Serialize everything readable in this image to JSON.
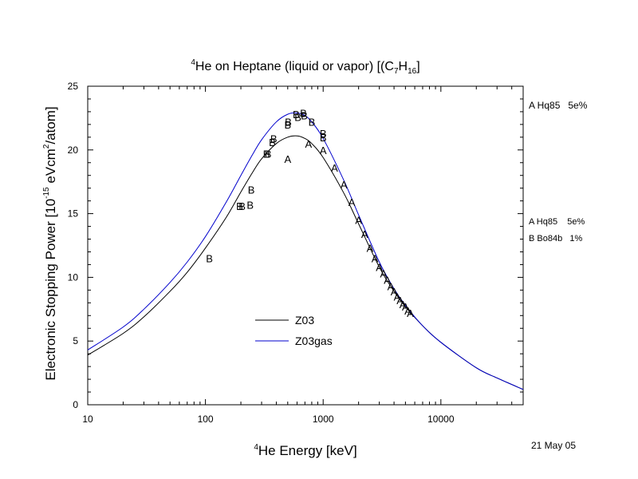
{
  "chart_data": {
    "type": "line",
    "title": {
      "pre": "4",
      "main": "He on Heptane (liquid or vapor) [(C",
      "sub1": "7",
      "mid": "H",
      "sub2": "16",
      "post": "]"
    },
    "xlabel": {
      "pre": "4",
      "main": "He Energy [keV]"
    },
    "ylabel": {
      "a": "Electronic Stopping Power [10",
      "exp1": "-15",
      "b": " eVcm",
      "exp2": "2",
      "c": "/atom]"
    },
    "x_scale": "log",
    "xlim": [
      10,
      50000
    ],
    "ylim": [
      0,
      25
    ],
    "x_ticks": [
      10,
      100,
      1000,
      10000
    ],
    "x_tick_labels": [
      "10",
      "100",
      "1000",
      "10000"
    ],
    "y_ticks": [
      0,
      5,
      10,
      15,
      20,
      25
    ],
    "y_tick_labels": [
      "0",
      "5",
      "10",
      "15",
      "20",
      "25"
    ],
    "series": [
      {
        "name": "Z03",
        "color": "#000000",
        "x": [
          10,
          20,
          30,
          50,
          70,
          100,
          150,
          200,
          250,
          300,
          400,
          500,
          600,
          700,
          800,
          1000,
          1500,
          2000,
          3000,
          4000,
          5000,
          7000,
          10000,
          20000,
          30000,
          50000
        ],
        "y": [
          3.9,
          5.6,
          6.9,
          8.9,
          10.4,
          12.3,
          14.7,
          16.7,
          18.2,
          19.3,
          20.5,
          21.0,
          21.1,
          20.9,
          20.5,
          19.4,
          16.6,
          14.2,
          10.8,
          8.9,
          7.7,
          6.2,
          4.9,
          2.9,
          2.1,
          1.2
        ]
      },
      {
        "name": "Z03gas",
        "color": "#0000cc",
        "x": [
          10,
          20,
          30,
          50,
          70,
          100,
          150,
          200,
          250,
          300,
          400,
          500,
          600,
          700,
          800,
          1000,
          1500,
          2000,
          3000,
          4000,
          5000,
          7000,
          10000,
          20000,
          30000,
          50000
        ],
        "y": [
          4.3,
          6.1,
          7.5,
          9.6,
          11.2,
          13.2,
          15.9,
          18.0,
          19.6,
          20.8,
          22.2,
          22.8,
          22.9,
          22.7,
          22.2,
          20.9,
          17.6,
          14.9,
          11.2,
          9.1,
          7.8,
          6.2,
          4.9,
          2.9,
          2.1,
          1.2
        ]
      }
    ],
    "points": [
      {
        "label": "A",
        "x": 500,
        "y": 19.3
      },
      {
        "label": "A",
        "x": 750,
        "y": 20.5
      },
      {
        "label": "A",
        "x": 1000,
        "y": 20.0
      },
      {
        "label": "A",
        "x": 1250,
        "y": 18.6
      },
      {
        "label": "A",
        "x": 1500,
        "y": 17.3
      },
      {
        "label": "A",
        "x": 1750,
        "y": 15.9
      },
      {
        "label": "A",
        "x": 2000,
        "y": 14.5
      },
      {
        "label": "A",
        "x": 2250,
        "y": 13.4
      },
      {
        "label": "A",
        "x": 2500,
        "y": 12.3
      },
      {
        "label": "A",
        "x": 2750,
        "y": 11.5
      },
      {
        "label": "A",
        "x": 3000,
        "y": 10.8
      },
      {
        "label": "A",
        "x": 3250,
        "y": 10.3
      },
      {
        "label": "A",
        "x": 3500,
        "y": 9.8
      },
      {
        "label": "A",
        "x": 3750,
        "y": 9.3
      },
      {
        "label": "A",
        "x": 4000,
        "y": 8.9
      },
      {
        "label": "A",
        "x": 4250,
        "y": 8.5
      },
      {
        "label": "A",
        "x": 4500,
        "y": 8.2
      },
      {
        "label": "A",
        "x": 4750,
        "y": 7.9
      },
      {
        "label": "A",
        "x": 5000,
        "y": 7.7
      },
      {
        "label": "A",
        "x": 5250,
        "y": 7.4
      },
      {
        "label": "A",
        "x": 5500,
        "y": 7.2
      },
      {
        "label": "B",
        "x": 108,
        "y": 11.5
      },
      {
        "label": "B",
        "x": 195,
        "y": 15.6
      },
      {
        "label": "B",
        "x": 205,
        "y": 15.6
      },
      {
        "label": "B",
        "x": 240,
        "y": 15.7
      },
      {
        "label": "B",
        "x": 245,
        "y": 16.9
      },
      {
        "label": "B",
        "x": 330,
        "y": 19.7
      },
      {
        "label": "B",
        "x": 340,
        "y": 19.7
      },
      {
        "label": "B",
        "x": 370,
        "y": 20.6
      },
      {
        "label": "B",
        "x": 380,
        "y": 20.9
      },
      {
        "label": "B",
        "x": 500,
        "y": 22.0
      },
      {
        "label": "B",
        "x": 505,
        "y": 22.2
      },
      {
        "label": "B",
        "x": 590,
        "y": 22.8
      },
      {
        "label": "B",
        "x": 610,
        "y": 22.6
      },
      {
        "label": "B",
        "x": 680,
        "y": 22.9
      },
      {
        "label": "B",
        "x": 690,
        "y": 22.7
      },
      {
        "label": "B",
        "x": 800,
        "y": 22.2
      },
      {
        "label": "B",
        "x": 1000,
        "y": 21.0
      },
      {
        "label": "B",
        "x": 1000,
        "y": 21.3
      }
    ],
    "legend": {
      "placement": "lower-center",
      "entries": [
        "Z03",
        "Z03gas"
      ]
    },
    "references": {
      "top": {
        "text": "A Hq85   5e%",
        "color": "#000000"
      },
      "side": [
        {
          "text": "A Hq85    5e%",
          "color": "#0000cc"
        },
        {
          "text": "B Bo84b   1%",
          "color": "#0000cc"
        }
      ]
    },
    "date": "21 May 05",
    "grid": false
  }
}
